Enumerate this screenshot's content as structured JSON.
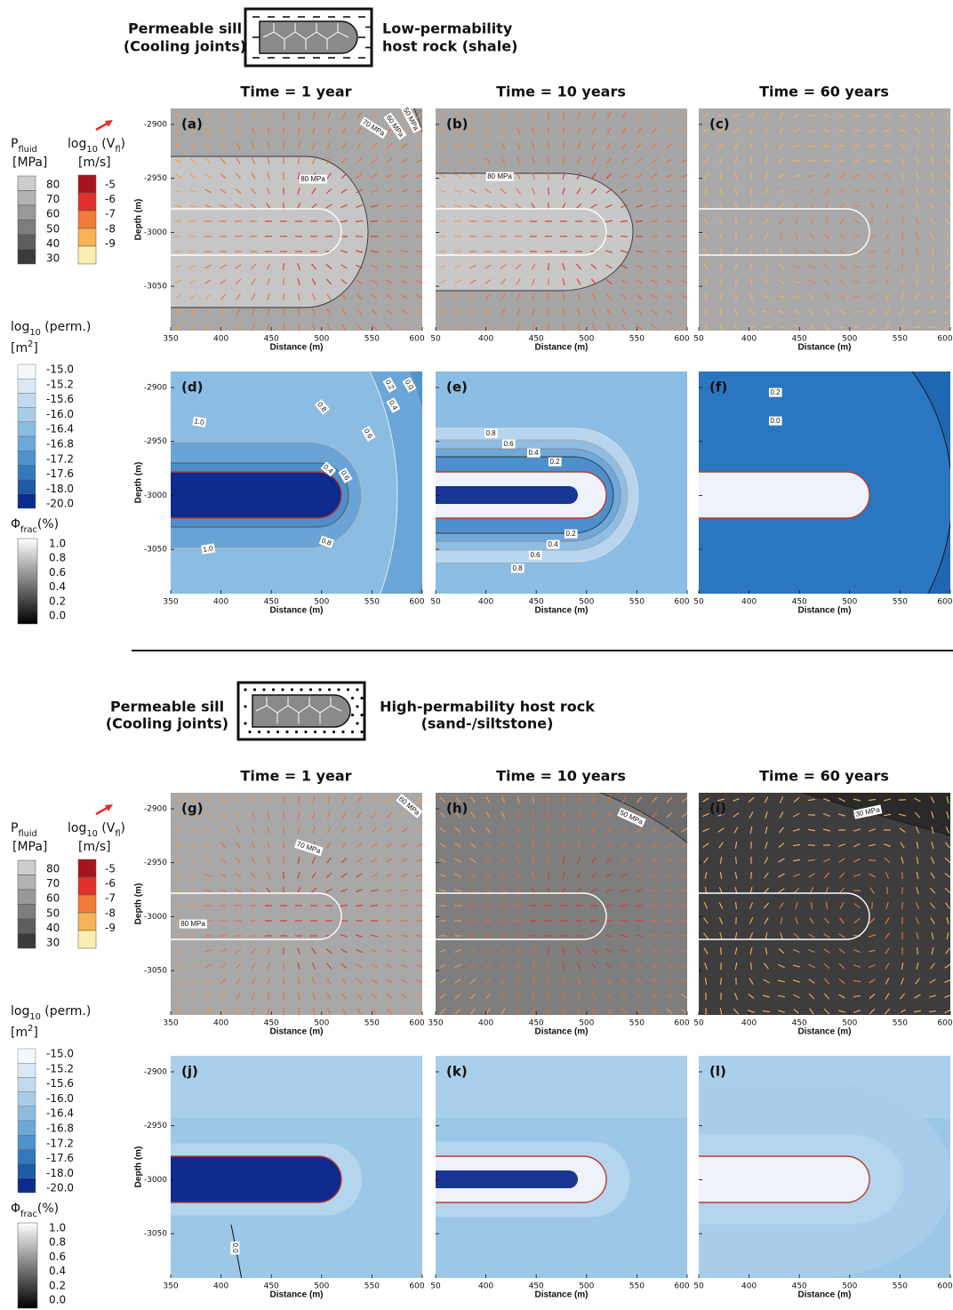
{
  "sections": [
    {
      "sill_label": [
        "Permeable sill",
        "(Cooling joints)"
      ],
      "host_label": [
        "Low-permability",
        "host rock (shale)"
      ],
      "times": [
        "Time = 1 year",
        "Time = 10 years",
        "Time = 60 years"
      ],
      "panels": [
        {
          "label": "(a)",
          "xticks": [
            "350",
            "400",
            "450",
            "500",
            "550",
            "600"
          ],
          "contour_labels": [
            "70 MPa",
            "60 MPa",
            "50 MPa",
            "80 MPa"
          ]
        },
        {
          "label": "(b)",
          "xticks": [
            "50",
            "400",
            "450",
            "500",
            "550",
            "600"
          ],
          "contour_labels": [
            "80 MPa"
          ]
        },
        {
          "label": "(c)",
          "xticks": [
            "50",
            "400",
            "450",
            "500",
            "550",
            "600"
          ]
        },
        {
          "label": "(d)",
          "xticks": [
            "350",
            "400",
            "450",
            "500",
            "550",
            "600"
          ],
          "contour_labels": [
            "0.2",
            "0.0",
            "0.4",
            "0.6",
            "0.8",
            "1.0",
            "0.4",
            "0.6",
            "1.0",
            "0.8"
          ]
        },
        {
          "label": "(e)",
          "xticks": [
            "50",
            "400",
            "450",
            "500",
            "550",
            "600"
          ],
          "contour_labels": [
            "0.8",
            "0.6",
            "0.4",
            "0.2",
            "0.2",
            "0.4",
            "0.6",
            "0.8"
          ]
        },
        {
          "label": "(f)",
          "xticks": [
            "50",
            "400",
            "450",
            "500",
            "550",
            "600"
          ],
          "contour_labels": [
            "0.2",
            "0.0"
          ]
        }
      ]
    },
    {
      "sill_label": [
        "Permeable sill",
        "(Cooling joints)"
      ],
      "host_label": [
        "High-permability host rock",
        "(sand-/siltstone)"
      ],
      "times": [
        "Time = 1 year",
        "Time = 10 years",
        "Time = 60 years"
      ],
      "panels": [
        {
          "label": "(g)",
          "xticks": [
            "350",
            "400",
            "450",
            "500",
            "550",
            "600"
          ],
          "contour_labels": [
            "60 MPa",
            "70 MPa",
            "80 MPa"
          ]
        },
        {
          "label": "(h)",
          "xticks": [
            "350",
            "400",
            "450",
            "500",
            "550",
            "600"
          ],
          "contour_labels": [
            "50 MPa"
          ]
        },
        {
          "label": "(i)",
          "xticks": [
            "50",
            "400",
            "450",
            "500",
            "550",
            "600"
          ],
          "contour_labels": [
            "30 MPa"
          ]
        },
        {
          "label": "(j)",
          "xticks": [
            "350",
            "400",
            "450",
            "500",
            "550",
            "600"
          ],
          "contour_labels": [
            "0.0"
          ]
        },
        {
          "label": "(k)",
          "xticks": [
            "50",
            "400",
            "450",
            "500",
            "550",
            "600"
          ]
        },
        {
          "label": "(l)",
          "xticks": [
            "50",
            "400",
            "450",
            "500",
            "550",
            "600"
          ]
        }
      ]
    }
  ],
  "axes": {
    "xlabel": "Distance (m)",
    "ylabel": "Depth (m)",
    "yticks": [
      "-2900",
      "-2950",
      "-3000",
      "-3050"
    ]
  },
  "legends": {
    "pfluid": {
      "symbol": "P",
      "sub": "fluid",
      "unit": "[MPa]",
      "ticks": [
        "80",
        "70",
        "60",
        "50",
        "40",
        "30"
      ]
    },
    "velocity": {
      "prefix": "log",
      "sub": "10",
      "mid": " (V",
      "sub2": "fl",
      "suffix": ")",
      "unit": "[m/s]",
      "ticks": [
        "-5",
        "-6",
        "-7",
        "-8",
        "-9"
      ]
    },
    "perm": {
      "prefix": "log",
      "sub": "10",
      "suffix": " (perm.)",
      "unit": "[m",
      "sup": "2",
      "unit_end": "]",
      "ticks": [
        "-15.0",
        "-15.2",
        "-15.6",
        "-16.0",
        "-16.4",
        "-16.8",
        "-17.2",
        "-17.6",
        "-18.0",
        "-20.0"
      ]
    },
    "phi": {
      "symbol": "Φ",
      "sub": "frac",
      "suffix": "(%)",
      "ticks": [
        "1.0",
        "0.8",
        "0.6",
        "0.4",
        "0.2",
        "0.0"
      ]
    }
  }
}
